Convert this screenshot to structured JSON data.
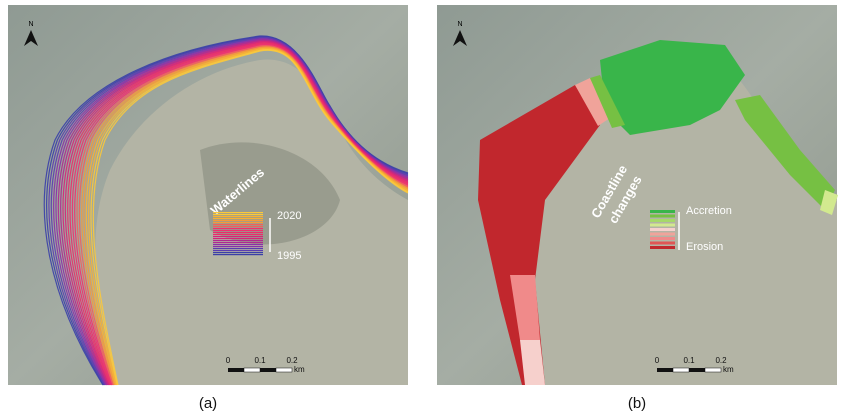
{
  "panels": [
    {
      "north": "N",
      "legend_title": [
        "Waterlines"
      ],
      "legend_top": "2020",
      "legend_bottom": "1995",
      "scale": {
        "ticks": [
          "0",
          "0.1",
          "0.2"
        ],
        "unit": "km"
      },
      "caption": "(a)"
    },
    {
      "north": "N",
      "legend_title": [
        "Coastline",
        "changes"
      ],
      "legend_top": "Accretion",
      "legend_bottom": "Erosion",
      "scale": {
        "ticks": [
          "0",
          "0.1",
          "0.2"
        ],
        "unit": "km"
      },
      "caption": "(b)"
    }
  ]
}
